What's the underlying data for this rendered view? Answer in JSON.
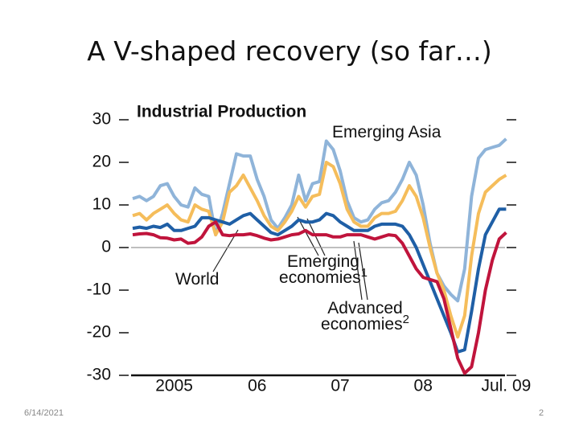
{
  "slide_title": "A V-shaped recovery (so far…)",
  "date": "6/14/2021",
  "page_number": "2",
  "chart_data": {
    "type": "line",
    "title": "Industrial Production",
    "categories": [
      null,
      null,
      null,
      null,
      null,
      null,
      "2005",
      null,
      null,
      null,
      null,
      null,
      null,
      null,
      null,
      null,
      null,
      null,
      "06",
      null,
      null,
      null,
      null,
      null,
      null,
      null,
      null,
      null,
      null,
      null,
      "07",
      null,
      null,
      null,
      null,
      null,
      null,
      null,
      null,
      null,
      null,
      null,
      "08",
      null,
      null,
      null,
      null,
      null,
      null,
      null,
      null,
      null,
      null,
      null,
      "Jul. 09"
    ],
    "ylim": [
      -30,
      30
    ],
    "yticks": [
      30,
      20,
      10,
      0,
      -10,
      -20,
      -30
    ],
    "zero_line": true,
    "series": [
      {
        "name": "Emerging Asia",
        "color": "#8fb4d9",
        "values": [
          11.5,
          12,
          11,
          12,
          14.5,
          15,
          12,
          10,
          9.5,
          14,
          12.5,
          12,
          3,
          8,
          15,
          22,
          21.5,
          21.5,
          16,
          12,
          6.5,
          4.5,
          7,
          10,
          17,
          11,
          15,
          15.5,
          25,
          23,
          18,
          11,
          7,
          6,
          6.5,
          9,
          10.5,
          11,
          13,
          16,
          20,
          17,
          10,
          1,
          -6,
          -9,
          -11,
          -12.5,
          -5,
          12,
          21,
          23,
          23.5,
          24,
          25.5
        ]
      },
      {
        "name": "Emerging economies",
        "footnote": "1",
        "color": "#f5bd5b",
        "values": [
          7.5,
          8,
          6.5,
          8,
          9,
          10,
          8,
          6.5,
          6,
          10,
          9,
          8.5,
          3,
          6,
          13,
          14.5,
          17,
          14,
          11,
          7.5,
          5,
          4,
          6,
          8.5,
          12,
          9.5,
          12,
          12.5,
          20,
          19,
          15,
          9,
          6,
          5,
          5,
          7,
          8,
          8,
          8.5,
          11,
          14.5,
          12,
          7,
          0,
          -6,
          -10,
          -16,
          -21,
          -16,
          -2,
          8,
          13,
          14.5,
          16,
          17
        ]
      },
      {
        "name": "World",
        "color": "#1f5fa6",
        "values": [
          4.5,
          4.8,
          4.5,
          5,
          4.7,
          5.5,
          4,
          4,
          4.5,
          5,
          7,
          7,
          6.5,
          6,
          5.5,
          6.5,
          7.5,
          8,
          6.5,
          5,
          3.5,
          3,
          4,
          5,
          6.5,
          6,
          6,
          6.5,
          8,
          7.5,
          6,
          5,
          4,
          4,
          4,
          5,
          5.5,
          5.5,
          5.5,
          5,
          3,
          0,
          -4,
          -8,
          -12,
          -16,
          -20,
          -24.5,
          -24,
          -15,
          -5,
          3,
          6,
          9,
          9
        ]
      },
      {
        "name": "Advanced economies",
        "footnote": "2",
        "color": "#c0143c",
        "values": [
          3,
          3.2,
          3.3,
          3,
          2.3,
          2.2,
          1.8,
          2,
          1,
          1.2,
          2.5,
          5,
          6,
          3,
          2.8,
          3,
          3,
          3.2,
          2.8,
          2.2,
          1.8,
          2,
          2.5,
          3,
          3.2,
          4,
          3,
          3,
          3,
          2.5,
          2.5,
          3,
          3,
          3,
          2.5,
          2,
          2.5,
          3,
          2.8,
          1,
          -2,
          -5,
          -7,
          -7.5,
          -8,
          -12,
          -19,
          -26,
          -29.5,
          -28,
          -20,
          -10,
          -3,
          2,
          3.5
        ]
      }
    ]
  }
}
